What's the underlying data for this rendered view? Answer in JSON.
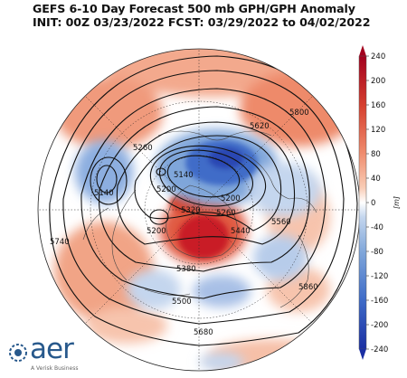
{
  "header": {
    "line1": "GEFS 6-10 Day Forecast 500 mb GPH/GPH Anomaly",
    "line2": "INIT: 00Z 03/23/2022    FCST: 03/29/2022 to 04/02/2022"
  },
  "colorbar": {
    "ticks": [
      "240",
      "200",
      "160",
      "120",
      "80",
      "40",
      "0",
      "-40",
      "-80",
      "-120",
      "-160",
      "-200",
      "-240"
    ],
    "unit": "[m]",
    "colors": {
      "pos_max": "#a3001e",
      "pos_high": "#d6402f",
      "pos_mid": "#ef8b6d",
      "pos_low": "#f9cdb6",
      "zero": "#ffffff",
      "neg_low": "#c4d6ee",
      "neg_mid": "#7fa6da",
      "neg_high": "#3f6cc8",
      "neg_max": "#1b2fa3"
    }
  },
  "contours": {
    "labels": [
      "5800",
      "5620",
      "5260",
      "5140",
      "5140",
      "5200",
      "5200",
      "5320",
      "5260",
      "5440",
      "5200",
      "5560",
      "5380",
      "5740",
      "5500",
      "5860",
      "5680"
    ]
  },
  "logo": {
    "brand": "aer",
    "tagline": "A Verisk Business"
  }
}
